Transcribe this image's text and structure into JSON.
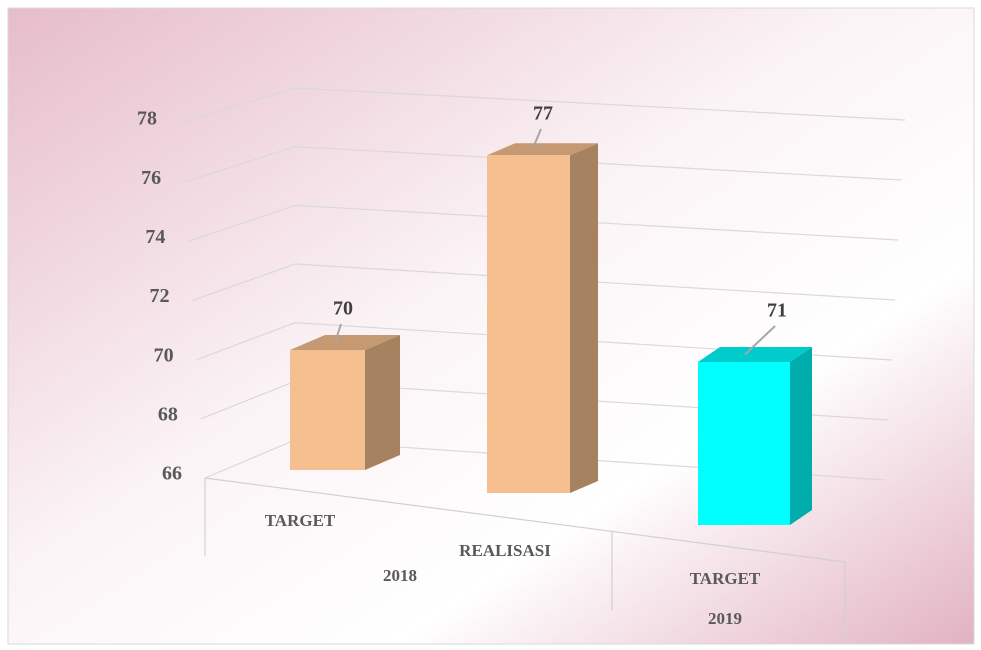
{
  "chart_data": {
    "type": "bar3d",
    "categories": [
      "TARGET",
      "REALISASI",
      "TARGET"
    ],
    "groups": [
      {
        "label": "2018",
        "span": 2
      },
      {
        "label": "2019",
        "span": 1
      }
    ],
    "values": [
      70,
      77,
      71
    ],
    "colors": [
      "#f6bf8f",
      "#f6bf8f",
      "#00ffff"
    ],
    "ylim": [
      66,
      78
    ],
    "yticks": [
      66,
      68,
      70,
      72,
      74,
      76,
      78
    ],
    "grid": true
  }
}
